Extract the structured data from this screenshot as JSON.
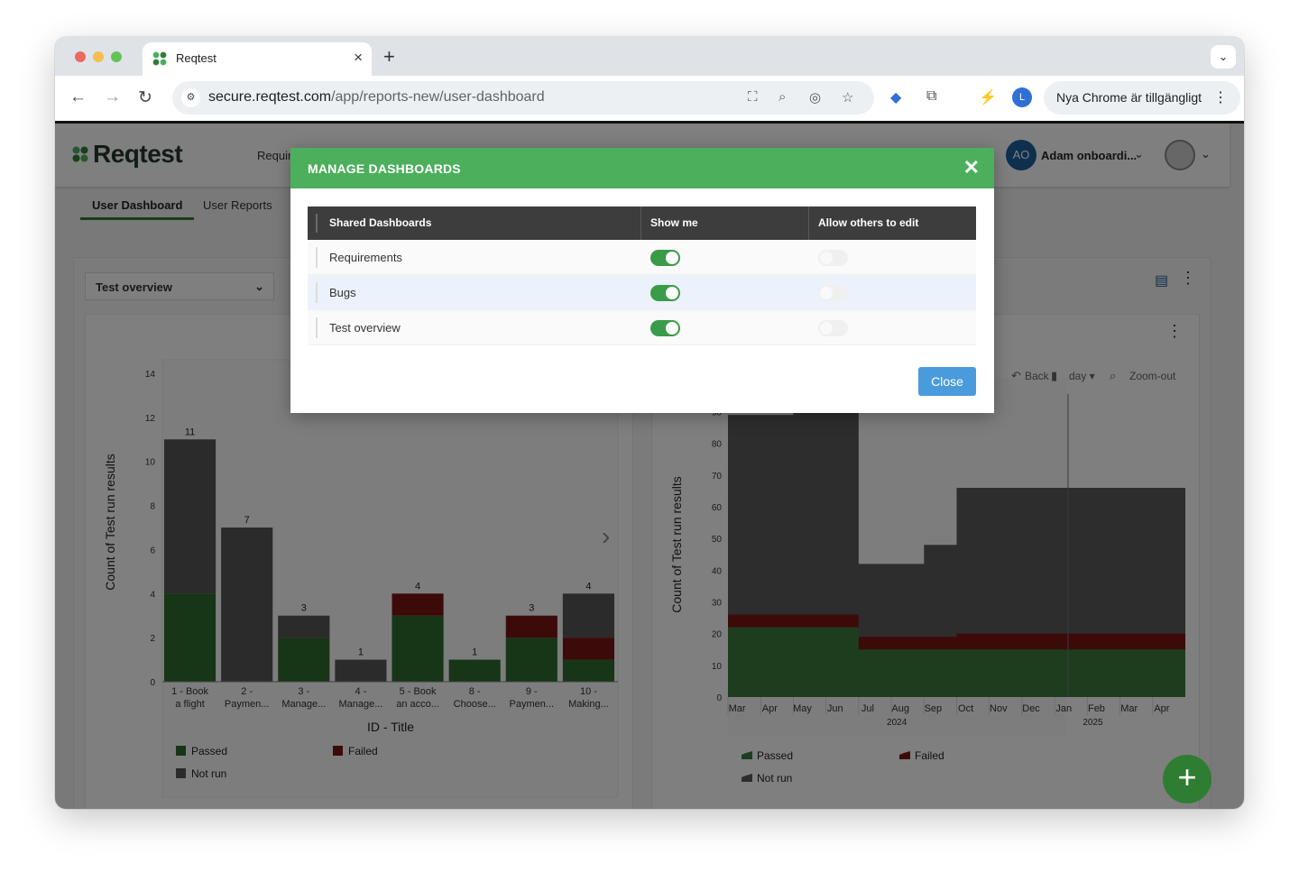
{
  "browser": {
    "tab_title": "Reqtest",
    "tab_close": "×",
    "new_tab": "+",
    "tab_menu": "⌄",
    "url_domain": "secure.reqtest.com",
    "url_path": "/app/reports-new/user-dashboard",
    "profile_initial": "L",
    "update_label": "Nya Chrome är tillgängligt"
  },
  "app": {
    "logo_text": "Reqtest",
    "nav_partial": "Requir",
    "user_initials": "AO",
    "user_name": "Adam onboardi...",
    "subtabs": [
      "User Dashboard",
      "User Reports"
    ],
    "selected_dashboard": "Test overview",
    "fab_label": "+"
  },
  "modal": {
    "title": "MANAGE DASHBOARDS",
    "close_icon": "✕",
    "columns": [
      "Shared Dashboards",
      "Show me",
      "Allow others to edit"
    ],
    "rows": [
      {
        "name": "Requirements",
        "show_me": true,
        "allow_edit": false
      },
      {
        "name": "Bugs",
        "show_me": true,
        "allow_edit": false
      },
      {
        "name": "Test overview",
        "show_me": true,
        "allow_edit": false
      }
    ],
    "close_button": "Close"
  },
  "chart_data": [
    {
      "type": "bar",
      "stacked": true,
      "xlabel": "ID - Title",
      "ylabel": "Count of Test run results",
      "ylim": [
        0,
        14
      ],
      "yticks": [
        0,
        2,
        4,
        6,
        8,
        10,
        12,
        14
      ],
      "categories": [
        "1 - Book a flight",
        "2 - Paymen...",
        "3 - Manage...",
        "4 - Manage...",
        "5 - Book an acco...",
        "8 - Choose...",
        "9 - Paymen...",
        "10 - Making..."
      ],
      "category_lines": [
        [
          "1 - Book",
          "a flight"
        ],
        [
          "2 -",
          "Paymen..."
        ],
        [
          "3 -",
          "Manage..."
        ],
        [
          "4 -",
          "Manage..."
        ],
        [
          "5 - Book",
          "an acco..."
        ],
        [
          "8 -",
          "Choose..."
        ],
        [
          "9 -",
          "Paymen..."
        ],
        [
          "10 -",
          "Making..."
        ]
      ],
      "series": [
        {
          "name": "Passed",
          "color": "#2e6b2e",
          "values": [
            4,
            0,
            2,
            0,
            3,
            1,
            2,
            1
          ]
        },
        {
          "name": "Failed",
          "color": "#7a1515",
          "values": [
            0,
            0,
            0,
            0,
            1,
            0,
            1,
            1
          ]
        },
        {
          "name": "Not run",
          "color": "#575757",
          "values": [
            7,
            7,
            1,
            1,
            0,
            0,
            0,
            2
          ]
        }
      ],
      "totals": [
        11,
        7,
        3,
        1,
        4,
        1,
        3,
        4
      ],
      "legend": "bottom-left"
    },
    {
      "type": "area",
      "stacked": true,
      "ylabel": "Count of Test run results",
      "ylim": [
        0,
        95
      ],
      "yticks": [
        0,
        10,
        20,
        30,
        40,
        50,
        60,
        70,
        80,
        90
      ],
      "x": [
        "Mar",
        "Apr",
        "May",
        "Jun",
        "Jul",
        "Aug",
        "Sep",
        "Oct",
        "Nov",
        "Dec",
        "Jan",
        "Feb",
        "Mar",
        "Apr"
      ],
      "year_labels": [
        {
          "label": "2024",
          "at": "Aug"
        },
        {
          "label": "2025",
          "at": "Feb"
        }
      ],
      "series": [
        {
          "name": "Passed",
          "color": "#3d7a3d",
          "values": [
            22,
            22,
            22,
            22,
            15,
            15,
            15,
            15,
            15,
            15,
            15,
            15,
            15,
            15
          ]
        },
        {
          "name": "Failed",
          "color": "#7a1515",
          "values": [
            4,
            4,
            4,
            4,
            4,
            4,
            4,
            5,
            5,
            5,
            5,
            5,
            5,
            5
          ]
        },
        {
          "name": "Not run",
          "color": "#5a5a5a",
          "values": [
            63,
            63,
            66,
            68,
            23,
            23,
            29,
            46,
            46,
            46,
            46,
            46,
            46,
            46
          ]
        }
      ],
      "toolbar": [
        "Back",
        "day",
        "Zoom-out"
      ],
      "legend": "bottom-left"
    }
  ]
}
